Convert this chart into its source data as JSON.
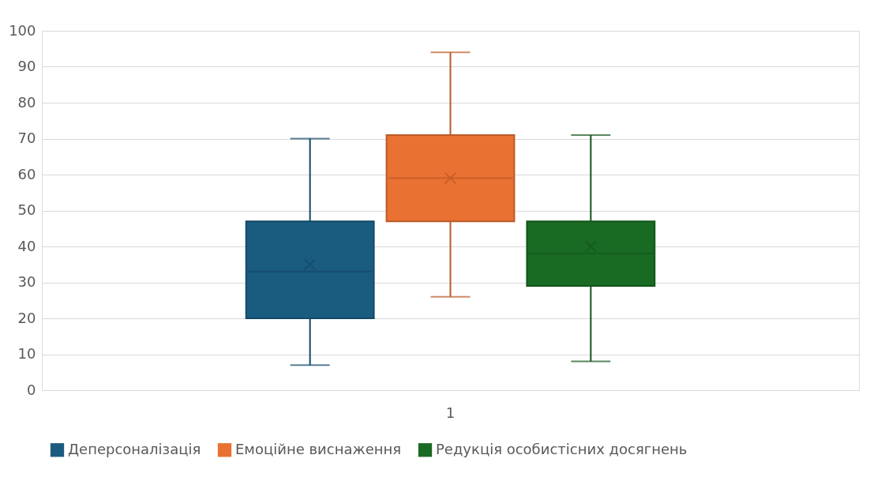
{
  "chart_data": {
    "type": "box",
    "categories": [
      "1"
    ],
    "series": [
      {
        "name": "Деперсоналізація",
        "color": "#1a5c80",
        "boxes": [
          {
            "low": 7,
            "q1": 20,
            "median": 33,
            "q3": 47,
            "high": 70,
            "mean": 35
          }
        ]
      },
      {
        "name": "Емоційне виснаження",
        "color": "#e97132",
        "boxes": [
          {
            "low": 26,
            "q1": 47,
            "median": 59,
            "q3": 71,
            "high": 94,
            "mean": 59
          }
        ]
      },
      {
        "name": "Редукція особистісних досягнень",
        "color": "#196b24",
        "boxes": [
          {
            "low": 8,
            "q1": 29,
            "median": 38,
            "q3": 47,
            "high": 71,
            "mean": 40
          }
        ]
      }
    ],
    "ylim": [
      0,
      100
    ],
    "yticks": [
      0,
      10,
      20,
      30,
      40,
      50,
      60,
      70,
      80,
      90,
      100
    ],
    "grid": "y",
    "legend": "bottom"
  }
}
